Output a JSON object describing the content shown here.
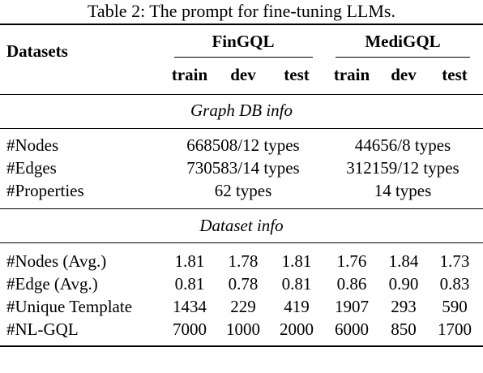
{
  "caption": "Table 2: The prompt for fine-tuning LLMs.",
  "header": {
    "datasets_label": "Datasets",
    "groups": [
      "FinGQL",
      "MediGQL"
    ],
    "splits": [
      "train",
      "dev",
      "test",
      "train",
      "dev",
      "test"
    ]
  },
  "sections": [
    {
      "title": "Graph DB info",
      "rows": [
        {
          "label": "#Nodes",
          "fingql": "668508/12 types",
          "medigql": "44656/8 types"
        },
        {
          "label": "#Edges",
          "fingql": "730583/14 types",
          "medigql": "312159/12 types"
        },
        {
          "label": "#Properties",
          "fingql": "62 types",
          "medigql": "14 types"
        }
      ]
    },
    {
      "title": "Dataset info",
      "rows": [
        {
          "label": "#Nodes (Avg.)",
          "values": [
            "1.81",
            "1.78",
            "1.81",
            "1.76",
            "1.84",
            "1.73"
          ]
        },
        {
          "label": "#Edge (Avg.)",
          "values": [
            "0.81",
            "0.78",
            "0.81",
            "0.86",
            "0.90",
            "0.83"
          ]
        },
        {
          "label": "#Unique Template",
          "values": [
            "1434",
            "229",
            "419",
            "1907",
            "293",
            "590"
          ]
        },
        {
          "label": "#NL-GQL",
          "values": [
            "7000",
            "1000",
            "2000",
            "6000",
            "850",
            "1700"
          ]
        }
      ]
    }
  ]
}
